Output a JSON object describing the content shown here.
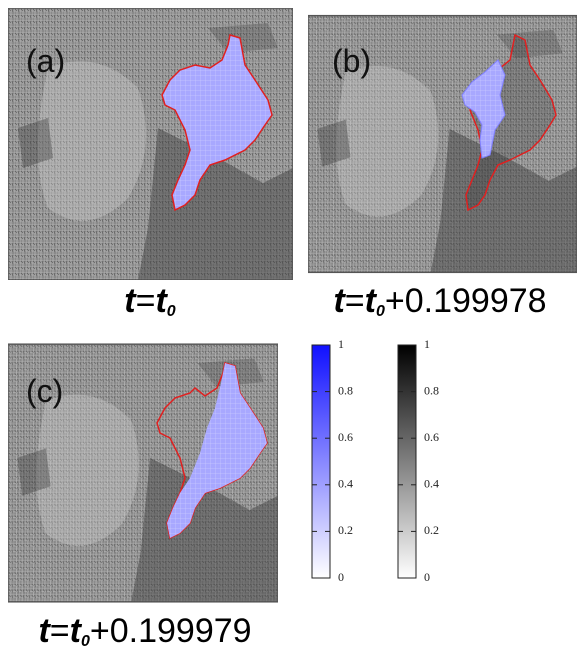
{
  "panels": [
    {
      "label": "(a)",
      "caption": {
        "lhs": "t",
        "eq": "=",
        "rhs": "t",
        "sub": "0",
        "offset": ""
      }
    },
    {
      "label": "(b)",
      "caption": {
        "lhs": "t",
        "eq": "=",
        "rhs": "t",
        "sub": "0",
        "offset": "+0.199978"
      }
    },
    {
      "label": "(c)",
      "caption": {
        "lhs": "t",
        "eq": "=",
        "rhs": "t",
        "sub": "0",
        "offset": "+0.199979"
      }
    }
  ],
  "colorbars": [
    {
      "low_color": "#ffffff",
      "high_color": "#1010ff",
      "range": [
        0,
        1
      ],
      "ticks": [
        0,
        0.2,
        0.4,
        0.6,
        0.8,
        1
      ]
    },
    {
      "low_color": "#ffffff",
      "high_color": "#000000",
      "range": [
        0,
        1
      ],
      "ticks": [
        0,
        0.2,
        0.4,
        0.6,
        0.8,
        1
      ]
    }
  ]
}
